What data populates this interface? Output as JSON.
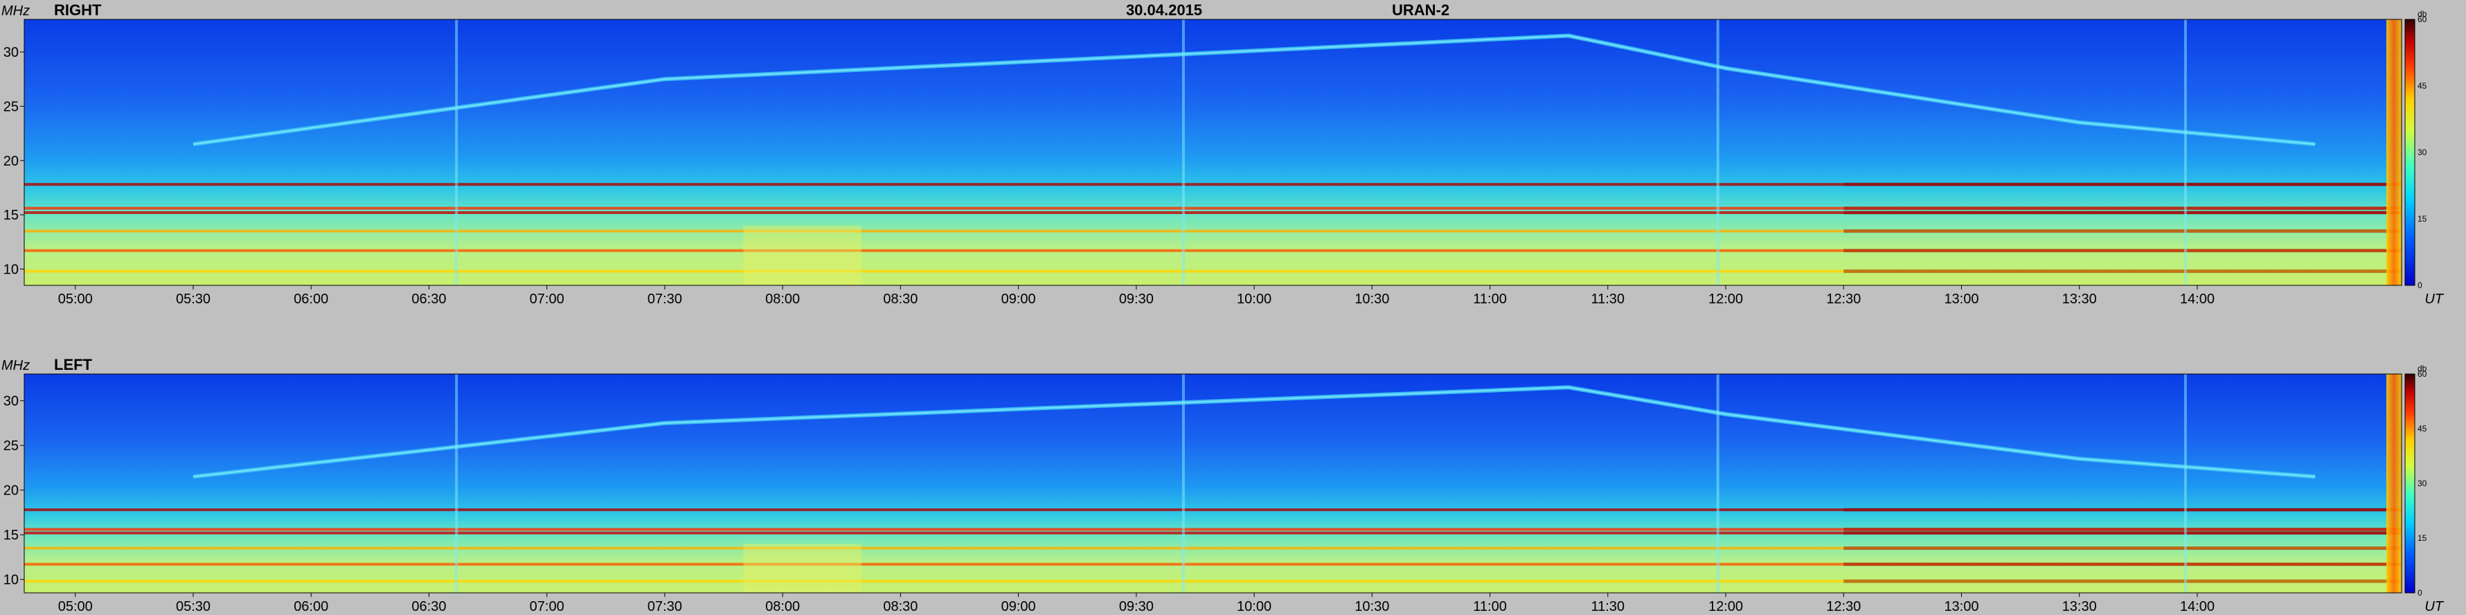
{
  "header": {
    "date": "30.04.2015",
    "instrument": "URAN-2"
  },
  "chart_data": [
    {
      "type": "heatmap",
      "title": "RIGHT",
      "xlabel": "UT",
      "ylabel": "MHz",
      "xticks": [
        "05:00",
        "05:30",
        "06:00",
        "06:30",
        "07:00",
        "07:30",
        "08:00",
        "08:30",
        "09:00",
        "09:30",
        "10:00",
        "10:30",
        "11:00",
        "11:30",
        "12:00",
        "12:30",
        "13:00",
        "13:30",
        "14:00"
      ],
      "xlim": [
        "04:47",
        "14:52"
      ],
      "yticks": [
        10,
        15,
        20,
        25,
        30
      ],
      "ylim": [
        8.5,
        33
      ],
      "colorbar": {
        "label": "db",
        "ticks": [
          0,
          15,
          30,
          45,
          60
        ],
        "range": [
          0,
          60
        ]
      },
      "features": {
        "rfi_bands_mhz": [
          9.8,
          11.7,
          13.5,
          15.2,
          15.6,
          17.8
        ],
        "drifting_band_mhz": {
          "05:30": 21.5,
          "07:30": 27.5,
          "11:20": 31.5,
          "12:00": 28.5,
          "13:30": 23.5,
          "14:30": 21.5
        },
        "vertical_features_ut": [
          "06:37",
          "09:42",
          "11:58",
          "13:57"
        ]
      }
    },
    {
      "type": "heatmap",
      "title": "LEFT",
      "xlabel": "UT",
      "ylabel": "MHz",
      "xticks": [
        "05:00",
        "05:30",
        "06:00",
        "06:30",
        "07:00",
        "07:30",
        "08:00",
        "08:30",
        "09:00",
        "09:30",
        "10:00",
        "10:30",
        "11:00",
        "11:30",
        "12:00",
        "12:30",
        "13:00",
        "13:30",
        "14:00"
      ],
      "xlim": [
        "04:47",
        "14:52"
      ],
      "yticks": [
        10,
        15,
        20,
        25,
        30
      ],
      "ylim": [
        8.5,
        33
      ],
      "colorbar": {
        "label": "db",
        "ticks": [
          0,
          15,
          30,
          45,
          60
        ],
        "range": [
          0,
          60
        ]
      },
      "features": {
        "rfi_bands_mhz": [
          9.8,
          11.7,
          13.5,
          15.2,
          15.6,
          17.8
        ],
        "drifting_band_mhz": {
          "05:30": 21.5,
          "07:30": 27.5,
          "11:20": 31.5,
          "12:00": 28.5,
          "13:30": 23.5,
          "14:30": 21.5
        },
        "vertical_features_ut": [
          "06:37",
          "09:42",
          "11:58",
          "13:57"
        ]
      }
    }
  ]
}
